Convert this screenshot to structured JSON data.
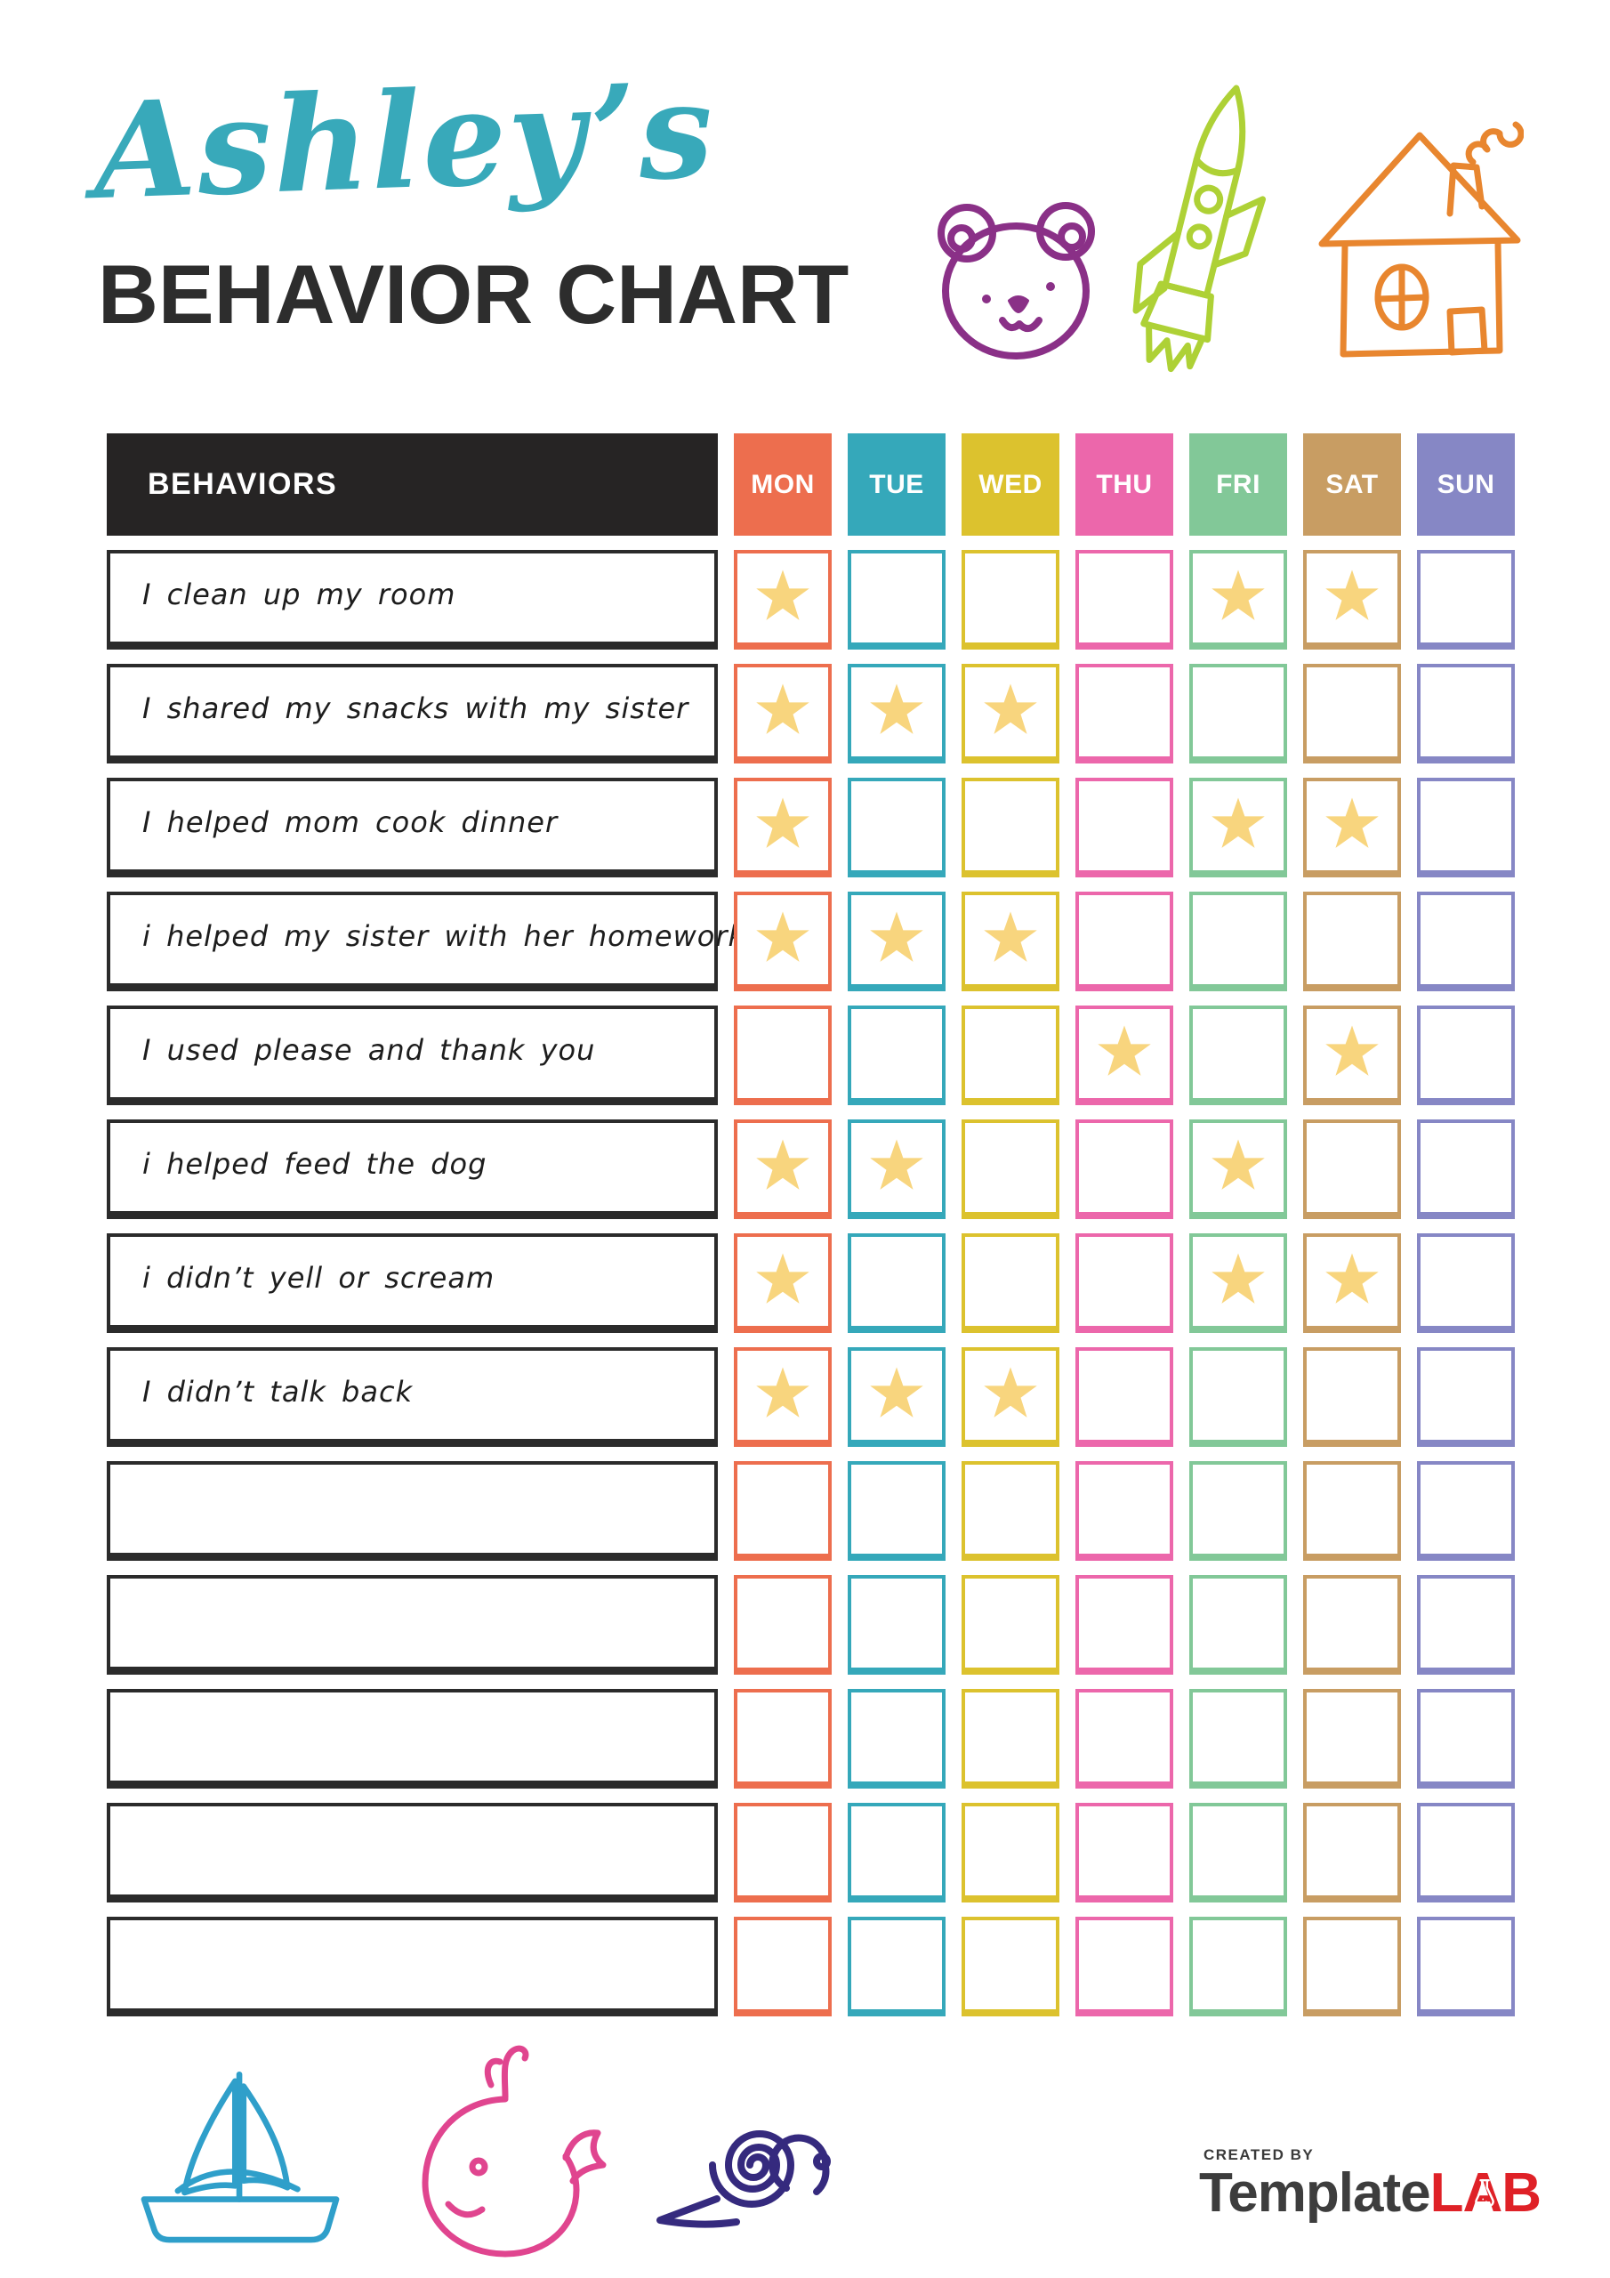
{
  "header": {
    "name_script": "Ashley’s",
    "title": "BEHAVIOR CHART",
    "script_color": "#38a9ba",
    "title_color": "#2d2d2d"
  },
  "doodles": {
    "top": [
      "bear-icon",
      "rocket-icon",
      "house-icon"
    ],
    "bottom": [
      "sailboat-icon",
      "whale-icon",
      "snail-icon"
    ],
    "colors": {
      "bear": "#8a3087",
      "rocket": "#aed136",
      "house": "#e8862f",
      "sailboat": "#2f9fca",
      "whale": "#e0458f",
      "snail": "#352a7e"
    }
  },
  "table": {
    "behaviors_header": "BEHAVIORS",
    "header_bg": "#262424",
    "star_color": "#f8d57e",
    "days": [
      {
        "label": "MON",
        "color": "#ed6e4e"
      },
      {
        "label": "TUE",
        "color": "#35a8ba"
      },
      {
        "label": "WED",
        "color": "#dcc22e"
      },
      {
        "label": "THU",
        "color": "#ec67ab"
      },
      {
        "label": "FRI",
        "color": "#82c898"
      },
      {
        "label": "SAT",
        "color": "#c89d63"
      },
      {
        "label": "SUN",
        "color": "#8687c5"
      }
    ],
    "rows": [
      {
        "behavior": "I clean up my room",
        "stars": [
          "MON",
          "FRI",
          "SAT"
        ]
      },
      {
        "behavior": "I shared my snacks with my sister",
        "stars": [
          "MON",
          "TUE",
          "WED"
        ]
      },
      {
        "behavior": "I helped mom cook dinner",
        "stars": [
          "MON",
          "FRI",
          "SAT"
        ]
      },
      {
        "behavior": "i helped my sister with her homework",
        "stars": [
          "MON",
          "TUE",
          "WED"
        ]
      },
      {
        "behavior": "I used please and thank you",
        "stars": [
          "THU",
          "SAT"
        ]
      },
      {
        "behavior": "i helped feed the dog",
        "stars": [
          "MON",
          "TUE",
          "FRI"
        ]
      },
      {
        "behavior": "i didn’t yell or scream",
        "stars": [
          "MON",
          "FRI",
          "SAT"
        ]
      },
      {
        "behavior": "I didn’t talk back",
        "stars": [
          "MON",
          "TUE",
          "WED"
        ]
      },
      {
        "behavior": "",
        "stars": []
      },
      {
        "behavior": "",
        "stars": []
      },
      {
        "behavior": "",
        "stars": []
      },
      {
        "behavior": "",
        "stars": []
      },
      {
        "behavior": "",
        "stars": []
      }
    ]
  },
  "footer": {
    "created_by": "CREATED BY",
    "brand_part1": "Template",
    "brand_part2": "LAB",
    "brand_color1": "#3d3d3d",
    "brand_color2": "#df2127"
  }
}
